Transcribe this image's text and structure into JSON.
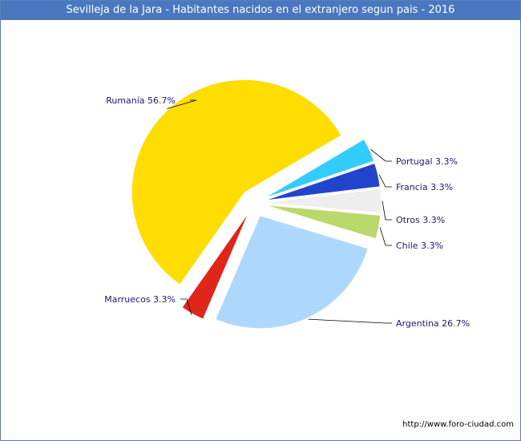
{
  "chart_data": {
    "type": "pie",
    "title": "Sevilleja de la Jara - Habitantes nacidos en el extranjero segun pais - 2016",
    "slices": [
      {
        "label": "Rumanía",
        "value": 56.7,
        "display": "Rumanía 56.7%",
        "color": "#ffdd00"
      },
      {
        "label": "Portugal",
        "value": 3.3,
        "display": "Portugal 3.3%",
        "color": "#33ccff"
      },
      {
        "label": "Francia",
        "value": 3.3,
        "display": "Francia 3.3%",
        "color": "#2244cc"
      },
      {
        "label": "Otros",
        "value": 3.3,
        "display": "Otros 3.3%",
        "color": "#eeeeee"
      },
      {
        "label": "Chile",
        "value": 3.3,
        "display": "Chile 3.3%",
        "color": "#b9d96b"
      },
      {
        "label": "Argentina",
        "value": 26.7,
        "display": "Argentina 26.7%",
        "color": "#add8fb"
      },
      {
        "label": "Marruecos",
        "value": 3.3,
        "display": "Marruecos 3.3%",
        "color": "#e0261a"
      }
    ]
  },
  "credit": "http://www.foro-ciudad.com"
}
